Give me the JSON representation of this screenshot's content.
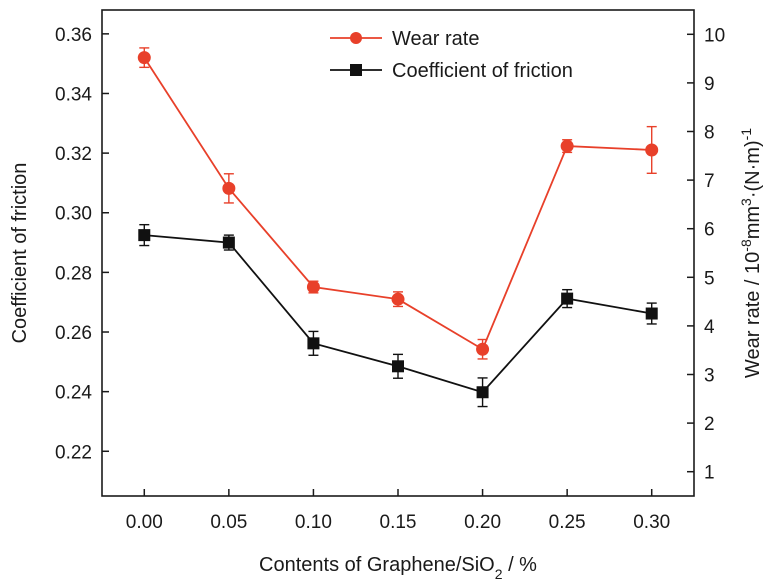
{
  "chart_data": {
    "type": "line",
    "x": [
      0.0,
      0.05,
      0.1,
      0.15,
      0.2,
      0.25,
      0.3
    ],
    "x_tick_labels": [
      "0.00",
      "0.05",
      "0.10",
      "0.15",
      "0.20",
      "0.25",
      "0.30"
    ],
    "xlim": [
      -0.025,
      0.325
    ],
    "xlabel": {
      "main": "Contents of Graphene/SiO",
      "sub": "2",
      "tail": " / %"
    },
    "y_left": {
      "label": "Coefficient of friction",
      "lim": [
        0.205,
        0.368
      ],
      "ticks": [
        0.22,
        0.24,
        0.26,
        0.28,
        0.3,
        0.32,
        0.34,
        0.36
      ],
      "tick_labels": [
        "0.22",
        "0.24",
        "0.26",
        "0.28",
        "0.30",
        "0.32",
        "0.34",
        "0.36"
      ]
    },
    "y_right": {
      "label": {
        "a": "Wear rate / 10",
        "b": "-8",
        "c": "mm",
        "d": "3",
        "e": "·(N·m)",
        "f": "-1"
      },
      "lim": [
        0.5,
        10.5
      ],
      "ticks": [
        1,
        2,
        3,
        4,
        5,
        6,
        7,
        8,
        9,
        10
      ],
      "tick_labels": [
        "1",
        "2",
        "3",
        "4",
        "5",
        "6",
        "7",
        "8",
        "9",
        "10"
      ]
    },
    "series": [
      {
        "name": "Wear rate",
        "axis": "right",
        "color": "#e8402a",
        "marker": "circle",
        "values": [
          9.52,
          6.83,
          4.8,
          4.55,
          3.52,
          7.7,
          7.62
        ],
        "errors": [
          0.2,
          0.3,
          0.12,
          0.15,
          0.2,
          0.13,
          0.48
        ]
      },
      {
        "name": "Coefficient of friction",
        "axis": "left",
        "color": "#111111",
        "marker": "square",
        "values": [
          0.2925,
          0.29,
          0.2562,
          0.2485,
          0.2398,
          0.2712,
          0.2662
        ],
        "errors": [
          0.0035,
          0.0025,
          0.004,
          0.004,
          0.0048,
          0.003,
          0.0035
        ]
      }
    ]
  }
}
